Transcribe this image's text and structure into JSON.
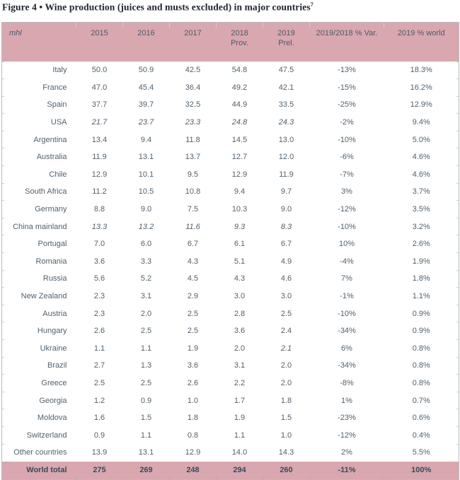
{
  "colors": {
    "header_pink": "#d9a7af",
    "total_pink": "#d9a7af",
    "border_gray": "#b6bcc0",
    "body_text": "#51616e",
    "header_text": "#4b5a68",
    "total_text": "#374b5a",
    "title_text": "#20262e"
  },
  "title": {
    "text": "Figure 4 • Wine production (juices and musts excluded) in major countries",
    "footnote_marker": "7"
  },
  "table": {
    "unit_label": "mhl",
    "columns": [
      {
        "label": "2015",
        "sub": ""
      },
      {
        "label": "2016",
        "sub": ""
      },
      {
        "label": "2017",
        "sub": ""
      },
      {
        "label": "2018",
        "sub": "Prov."
      },
      {
        "label": "2019",
        "sub": "Prel."
      },
      {
        "label": "2019/2018 % Var.",
        "sub": ""
      },
      {
        "label": "2019 % world",
        "sub": ""
      }
    ],
    "rows": [
      {
        "country": "Italy",
        "values": [
          "50.0",
          "50.9",
          "42.5",
          "54.8",
          "47.5"
        ],
        "var": "-13%",
        "world": "18.3%",
        "italic_cols": []
      },
      {
        "country": "France",
        "values": [
          "47.0",
          "45.4",
          "36.4",
          "49.2",
          "42.1"
        ],
        "var": "-15%",
        "world": "16.2%",
        "italic_cols": []
      },
      {
        "country": "Spain",
        "values": [
          "37.7",
          "39.7",
          "32.5",
          "44.9",
          "33.5"
        ],
        "var": "-25%",
        "world": "12.9%",
        "italic_cols": []
      },
      {
        "country": "USA",
        "values": [
          "21.7",
          "23.7",
          "23.3",
          "24.8",
          "24.3"
        ],
        "var": "-2%",
        "world": "9.4%",
        "italic_cols": [
          0,
          1,
          2,
          3,
          4
        ]
      },
      {
        "country": "Argentina",
        "values": [
          "13.4",
          "9.4",
          "11.8",
          "14.5",
          "13.0"
        ],
        "var": "-10%",
        "world": "5.0%",
        "italic_cols": []
      },
      {
        "country": "Australia",
        "values": [
          "11.9",
          "13.1",
          "13.7",
          "12.7",
          "12.0"
        ],
        "var": "-6%",
        "world": "4.6%",
        "italic_cols": []
      },
      {
        "country": "Chile",
        "values": [
          "12.9",
          "10.1",
          "9.5",
          "12.9",
          "11.9"
        ],
        "var": "-7%",
        "world": "4.6%",
        "italic_cols": []
      },
      {
        "country": "South Africa",
        "values": [
          "11.2",
          "10.5",
          "10.8",
          "9.4",
          "9.7"
        ],
        "var": "3%",
        "world": "3.7%",
        "italic_cols": []
      },
      {
        "country": "Germany",
        "values": [
          "8.8",
          "9.0",
          "7.5",
          "10.3",
          "9.0"
        ],
        "var": "-12%",
        "world": "3.5%",
        "italic_cols": []
      },
      {
        "country": "China mainland",
        "values": [
          "13.3",
          "13.2",
          "11.6",
          "9.3",
          "8.3"
        ],
        "var": "-10%",
        "world": "3.2%",
        "italic_cols": [
          0,
          1,
          2,
          3,
          4
        ]
      },
      {
        "country": "Portugal",
        "values": [
          "7.0",
          "6.0",
          "6.7",
          "6.1",
          "6.7"
        ],
        "var": "10%",
        "world": "2.6%",
        "italic_cols": []
      },
      {
        "country": "Romania",
        "values": [
          "3.6",
          "3.3",
          "4.3",
          "5.1",
          "4.9"
        ],
        "var": "-4%",
        "world": "1.9%",
        "italic_cols": []
      },
      {
        "country": "Russia",
        "values": [
          "5.6",
          "5.2",
          "4.5",
          "4.3",
          "4.6"
        ],
        "var": "7%",
        "world": "1.8%",
        "italic_cols": []
      },
      {
        "country": "New Zealand",
        "values": [
          "2.3",
          "3.1",
          "2.9",
          "3.0",
          "3.0"
        ],
        "var": "-1%",
        "world": "1.1%",
        "italic_cols": []
      },
      {
        "country": "Austria",
        "values": [
          "2.3",
          "2.0",
          "2.5",
          "2.8",
          "2.5"
        ],
        "var": "-10%",
        "world": "0.9%",
        "italic_cols": []
      },
      {
        "country": "Hungary",
        "values": [
          "2.6",
          "2.5",
          "2.5",
          "3.6",
          "2.4"
        ],
        "var": "-34%",
        "world": "0.9%",
        "italic_cols": []
      },
      {
        "country": "Ukraine",
        "values": [
          "1.1",
          "1.1",
          "1.9",
          "2.0",
          "2.1"
        ],
        "var": "6%",
        "world": "0.8%",
        "italic_cols": [
          4
        ]
      },
      {
        "country": "Brazil",
        "values": [
          "2.7",
          "1.3",
          "3.6",
          "3.1",
          "2.0"
        ],
        "var": "-34%",
        "world": "0.8%",
        "italic_cols": []
      },
      {
        "country": "Greece",
        "values": [
          "2.5",
          "2.5",
          "2.6",
          "2.2",
          "2.0"
        ],
        "var": "-8%",
        "world": "0.8%",
        "italic_cols": []
      },
      {
        "country": "Georgia",
        "values": [
          "1.2",
          "0.9",
          "1.0",
          "1.7",
          "1.8"
        ],
        "var": "1%",
        "world": "0.7%",
        "italic_cols": []
      },
      {
        "country": "Moldova",
        "values": [
          "1.6",
          "1.5",
          "1.8",
          "1.9",
          "1.5"
        ],
        "var": "-23%",
        "world": "0.6%",
        "italic_cols": []
      },
      {
        "country": "Switzerland",
        "values": [
          "0.9",
          "1.1",
          "0.8",
          "1.1",
          "1.0"
        ],
        "var": "-12%",
        "world": "0.4%",
        "italic_cols": []
      },
      {
        "country": "Other countries",
        "values": [
          "13.9",
          "13.1",
          "12.9",
          "14.0",
          "14.3"
        ],
        "var": "2%",
        "world": "5.5%",
        "italic_cols": []
      }
    ],
    "total_row": {
      "country": "World total",
      "values": [
        "275",
        "269",
        "248",
        "294",
        "260"
      ],
      "var": "-11%",
      "world": "100%"
    }
  }
}
